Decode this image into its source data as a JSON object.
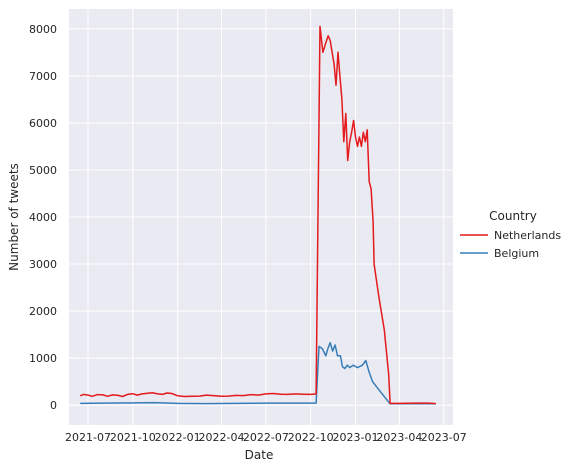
{
  "chart_data": {
    "type": "line",
    "title": "",
    "xlabel": "Date",
    "ylabel": "Number of tweets",
    "x_tick_labels": [
      "2021-07",
      "2021-10",
      "2022-01",
      "2022-04",
      "2022-07",
      "2022-10",
      "2023-01",
      "2023-04",
      "2023-07"
    ],
    "y_ticks": [
      0,
      1000,
      2000,
      3000,
      4000,
      5000,
      6000,
      7000,
      8000
    ],
    "ylim": [
      -420,
      8420
    ],
    "xlim": [
      "2021-05-23",
      "2023-07-20"
    ],
    "grid": true,
    "background": "#eaeaf2",
    "legend": {
      "title": "Country",
      "placement": "right"
    },
    "series": [
      {
        "name": "Netherlands",
        "color": "#e41a1c",
        "points": [
          [
            "2021-06-15",
            200
          ],
          [
            "2021-06-22",
            230
          ],
          [
            "2021-07-01",
            215
          ],
          [
            "2021-07-10",
            190
          ],
          [
            "2021-07-20",
            225
          ],
          [
            "2021-08-01",
            220
          ],
          [
            "2021-08-10",
            190
          ],
          [
            "2021-08-20",
            220
          ],
          [
            "2021-09-01",
            210
          ],
          [
            "2021-09-10",
            185
          ],
          [
            "2021-09-20",
            230
          ],
          [
            "2021-10-01",
            245
          ],
          [
            "2021-10-10",
            215
          ],
          [
            "2021-10-20",
            240
          ],
          [
            "2021-11-01",
            255
          ],
          [
            "2021-11-10",
            265
          ],
          [
            "2021-11-20",
            245
          ],
          [
            "2021-12-01",
            230
          ],
          [
            "2021-12-10",
            260
          ],
          [
            "2021-12-20",
            250
          ],
          [
            "2022-01-01",
            200
          ],
          [
            "2022-01-15",
            185
          ],
          [
            "2022-02-01",
            190
          ],
          [
            "2022-02-15",
            195
          ],
          [
            "2022-03-01",
            215
          ],
          [
            "2022-03-15",
            205
          ],
          [
            "2022-04-01",
            190
          ],
          [
            "2022-04-15",
            195
          ],
          [
            "2022-05-01",
            210
          ],
          [
            "2022-05-15",
            205
          ],
          [
            "2022-06-01",
            225
          ],
          [
            "2022-06-15",
            215
          ],
          [
            "2022-07-01",
            240
          ],
          [
            "2022-07-15",
            250
          ],
          [
            "2022-08-01",
            235
          ],
          [
            "2022-08-15",
            230
          ],
          [
            "2022-09-01",
            240
          ],
          [
            "2022-09-15",
            235
          ],
          [
            "2022-10-01",
            230
          ],
          [
            "2022-10-12",
            240
          ],
          [
            "2022-10-20",
            8050
          ],
          [
            "2022-10-26",
            7500
          ],
          [
            "2022-11-01",
            7700
          ],
          [
            "2022-11-06",
            7850
          ],
          [
            "2022-11-10",
            7750
          ],
          [
            "2022-11-14",
            7500
          ],
          [
            "2022-11-18",
            7250
          ],
          [
            "2022-11-22",
            6800
          ],
          [
            "2022-11-26",
            7500
          ],
          [
            "2022-11-30",
            7000
          ],
          [
            "2022-12-04",
            6500
          ],
          [
            "2022-12-08",
            5600
          ],
          [
            "2022-12-12",
            6200
          ],
          [
            "2022-12-16",
            5200
          ],
          [
            "2022-12-20",
            5600
          ],
          [
            "2022-12-24",
            5800
          ],
          [
            "2022-12-28",
            6050
          ],
          [
            "2023-01-01",
            5700
          ],
          [
            "2023-01-05",
            5500
          ],
          [
            "2023-01-09",
            5700
          ],
          [
            "2023-01-13",
            5500
          ],
          [
            "2023-01-17",
            5800
          ],
          [
            "2023-01-21",
            5600
          ],
          [
            "2023-01-25",
            5850
          ],
          [
            "2023-01-29",
            4750
          ],
          [
            "2023-02-02",
            4600
          ],
          [
            "2023-02-06",
            3900
          ],
          [
            "2023-02-08",
            3000
          ],
          [
            "2023-02-18",
            2300
          ],
          [
            "2023-03-01",
            1600
          ],
          [
            "2023-03-10",
            650
          ],
          [
            "2023-03-13",
            40
          ],
          [
            "2023-04-01",
            40
          ],
          [
            "2023-05-01",
            45
          ],
          [
            "2023-06-01",
            45
          ],
          [
            "2023-06-15",
            35
          ]
        ]
      },
      {
        "name": "Belgium",
        "color": "#377eb8",
        "points": [
          [
            "2021-06-15",
            40
          ],
          [
            "2021-08-01",
            45
          ],
          [
            "2021-10-01",
            50
          ],
          [
            "2021-11-15",
            55
          ],
          [
            "2022-01-01",
            40
          ],
          [
            "2022-03-01",
            35
          ],
          [
            "2022-05-01",
            40
          ],
          [
            "2022-07-01",
            45
          ],
          [
            "2022-09-01",
            45
          ],
          [
            "2022-10-12",
            45
          ],
          [
            "2022-10-18",
            1250
          ],
          [
            "2022-10-25",
            1200
          ],
          [
            "2022-11-01",
            1050
          ],
          [
            "2022-11-05",
            1200
          ],
          [
            "2022-11-10",
            1330
          ],
          [
            "2022-11-15",
            1150
          ],
          [
            "2022-11-20",
            1280
          ],
          [
            "2022-11-25",
            1050
          ],
          [
            "2022-12-01",
            1050
          ],
          [
            "2022-12-05",
            820
          ],
          [
            "2022-12-10",
            780
          ],
          [
            "2022-12-15",
            850
          ],
          [
            "2022-12-20",
            800
          ],
          [
            "2022-12-27",
            850
          ],
          [
            "2023-01-05",
            800
          ],
          [
            "2023-01-15",
            850
          ],
          [
            "2023-01-22",
            950
          ],
          [
            "2023-01-29",
            700
          ],
          [
            "2023-02-05",
            500
          ],
          [
            "2023-02-20",
            300
          ],
          [
            "2023-03-13",
            30
          ],
          [
            "2023-06-15",
            30
          ]
        ]
      }
    ]
  }
}
